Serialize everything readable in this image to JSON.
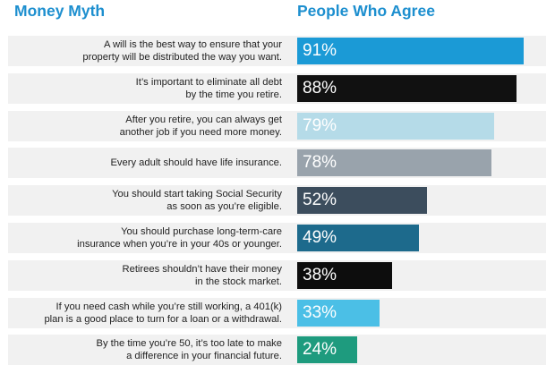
{
  "header": {
    "left": "Money Myth",
    "right": "People Who Agree"
  },
  "chart_data": {
    "type": "bar",
    "orientation": "horizontal",
    "xlim": [
      0,
      100
    ],
    "categories": [
      "A will is the best way to ensure that your\nproperty will be distributed the way you want.",
      "It’s important to eliminate all debt\nby the time you retire.",
      "After you retire, you can always get\nanother job if you need more money.",
      "Every adult should have life insurance.",
      "You should start taking Social Security\nas soon as you’re eligible.",
      "You should purchase long-term-care\ninsurance when you’re in your 40s or younger.",
      "Retirees shouldn’t have their money\nin the stock market.",
      "If you need cash while you’re still working, a 401(k)\nplan is a good place to turn for a loan or a withdrawal.",
      "By the time you’re 50, it’s too late to make\na difference in your financial future."
    ],
    "values": [
      91,
      88,
      79,
      78,
      52,
      49,
      38,
      33,
      24
    ],
    "value_labels": [
      "91%",
      "88%",
      "79%",
      "78%",
      "52%",
      "49%",
      "38%",
      "33%",
      "24%"
    ],
    "colors": [
      "#1b9ad6",
      "#111111",
      "#b5dbe8",
      "#99a3ac",
      "#3c4d5d",
      "#1d6a8c",
      "#0d0d0d",
      "#4bbfe6",
      "#1e9b7e"
    ]
  }
}
